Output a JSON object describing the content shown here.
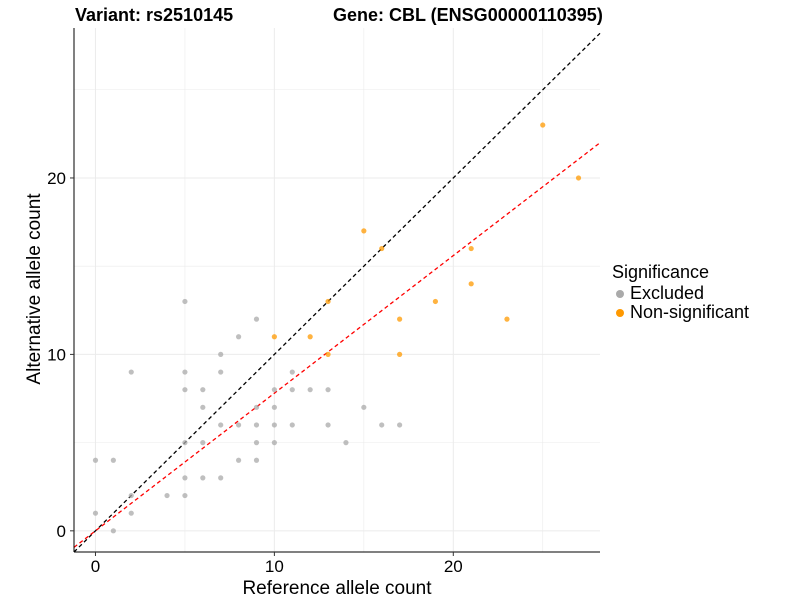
{
  "title": {
    "variant": "Variant: rs2510145",
    "gene": "Gene: CBL (ENSG00000110395)"
  },
  "chart_data": {
    "type": "scatter",
    "xlabel": "Reference allele count",
    "ylabel": "Alternative allele count",
    "xlim": [
      -1.2,
      28.2
    ],
    "ylim": [
      -1.2,
      28.5
    ],
    "xticks": [
      0,
      10,
      20
    ],
    "yticks": [
      0,
      10,
      20
    ],
    "grid": true,
    "legend": {
      "title": "Significance",
      "position": "right",
      "entries": [
        {
          "label": "Excluded",
          "color": "#aaaaaa"
        },
        {
          "label": "Non-significant",
          "color": "#ff9900"
        }
      ]
    },
    "reference_lines": [
      {
        "name": "y = x",
        "slope": 1,
        "intercept": 0,
        "color": "#000000",
        "style": "dashed"
      },
      {
        "name": "fitted",
        "slope": 0.78,
        "intercept": 0,
        "color": "#ff0000",
        "style": "dashed"
      }
    ],
    "series": [
      {
        "name": "Excluded",
        "color": "#aaaaaa",
        "points": [
          [
            0,
            4
          ],
          [
            0,
            1
          ],
          [
            1,
            4
          ],
          [
            1,
            0
          ],
          [
            2,
            9
          ],
          [
            2,
            2
          ],
          [
            2,
            1
          ],
          [
            4,
            2
          ],
          [
            5,
            13
          ],
          [
            5,
            9
          ],
          [
            5,
            8
          ],
          [
            5,
            5
          ],
          [
            5,
            3
          ],
          [
            5,
            2
          ],
          [
            6,
            8
          ],
          [
            6,
            7
          ],
          [
            6,
            5
          ],
          [
            6,
            3
          ],
          [
            7,
            10
          ],
          [
            7,
            9
          ],
          [
            7,
            6
          ],
          [
            7,
            3
          ],
          [
            8,
            11
          ],
          [
            8,
            6
          ],
          [
            8,
            4
          ],
          [
            9,
            12
          ],
          [
            9,
            7
          ],
          [
            9,
            6
          ],
          [
            9,
            5
          ],
          [
            9,
            4
          ],
          [
            10,
            8
          ],
          [
            10,
            7
          ],
          [
            10,
            6
          ],
          [
            10,
            5
          ],
          [
            11,
            9
          ],
          [
            11,
            8
          ],
          [
            11,
            6
          ],
          [
            12,
            8
          ],
          [
            13,
            8
          ],
          [
            13,
            6
          ],
          [
            14,
            5
          ],
          [
            15,
            7
          ],
          [
            16,
            6
          ],
          [
            17,
            6
          ]
        ]
      },
      {
        "name": "Non-significant",
        "color": "#ff9900",
        "points": [
          [
            10,
            11
          ],
          [
            12,
            11
          ],
          [
            13,
            13
          ],
          [
            13,
            10
          ],
          [
            15,
            17
          ],
          [
            16,
            16
          ],
          [
            17,
            12
          ],
          [
            17,
            10
          ],
          [
            19,
            13
          ],
          [
            21,
            16
          ],
          [
            21,
            14
          ],
          [
            23,
            12
          ],
          [
            25,
            23
          ],
          [
            27,
            20
          ]
        ]
      }
    ]
  }
}
